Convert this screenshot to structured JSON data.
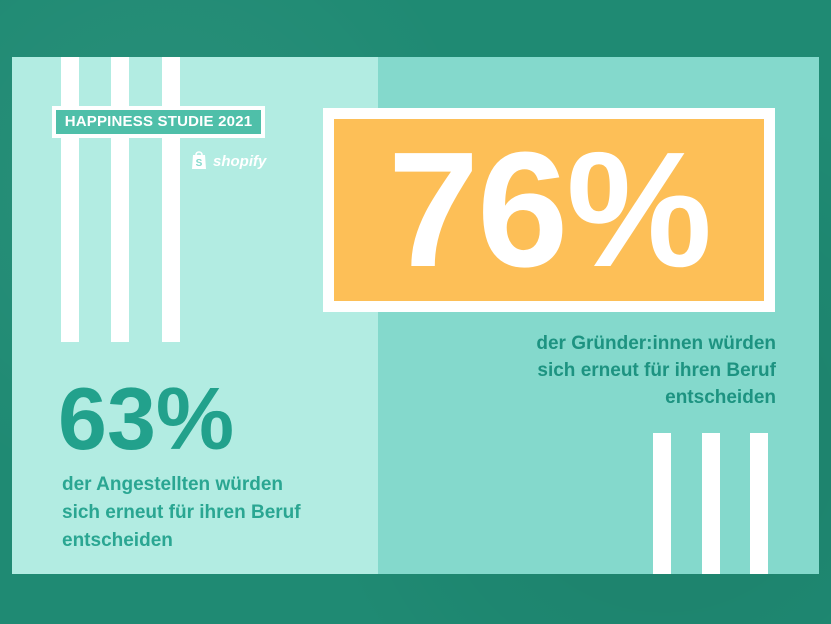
{
  "badge": {
    "label": "HAPPINESS STUDIE 2021"
  },
  "brand": {
    "name": "shopify",
    "icon": "shopify-bag-icon"
  },
  "founders": {
    "percent": "76%",
    "caption_lines": [
      "der Gründer:innen würden",
      "sich erneut für ihren Beruf",
      "entscheiden"
    ]
  },
  "employees": {
    "percent": "63%",
    "caption_lines": [
      "der Angestellten würden",
      "sich erneut für ihren Beruf",
      "entscheiden"
    ]
  },
  "colors": {
    "background": "#1f8a73",
    "card_left": "#b2ece2",
    "card_right": "#84d9cc",
    "highlight": "#fdbf57",
    "teal_text": "#22a18c",
    "white": "#ffffff"
  }
}
